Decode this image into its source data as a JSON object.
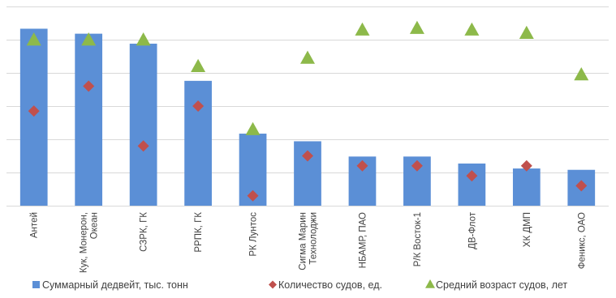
{
  "chart_data": {
    "type": "bar",
    "categories": [
      [
        "Антей"
      ],
      [
        "Кук, Монерон,",
        "Океан"
      ],
      [
        "СЗРК, ГК"
      ],
      [
        "РРПК, ГК"
      ],
      [
        "РК Лунтос"
      ],
      [
        "Сигма Марин",
        "Технолоджи"
      ],
      [
        "НБАМР, ПАО"
      ],
      [
        "Р/К Восток-1"
      ],
      [
        "ДВ-Флот"
      ],
      [
        "ХК ДМП"
      ],
      [
        "Феникс, ОАО"
      ]
    ],
    "y_range": [
      0,
      6
    ],
    "gridlines": [
      1,
      2,
      3,
      4,
      5,
      6
    ],
    "y_ticks_shown": false,
    "series": [
      {
        "name": "Суммарный дедвейт, тыс. тонн",
        "kind": "bar",
        "color": "#5b8fd6",
        "marker": "square",
        "values": [
          5.33,
          5.18,
          4.88,
          3.76,
          2.17,
          1.94,
          1.48,
          1.48,
          1.27,
          1.12,
          1.08
        ]
      },
      {
        "name": "Количество судов, ед.",
        "kind": "marker",
        "color": "#c0504d",
        "marker": "diamond",
        "values": [
          2.85,
          3.6,
          1.8,
          3.0,
          0.3,
          1.5,
          1.2,
          1.2,
          0.9,
          1.2,
          0.6
        ]
      },
      {
        "name": "Средний возраст судов, лет",
        "kind": "marker",
        "color": "#8db94a",
        "marker": "triangle",
        "values": [
          5.0,
          5.0,
          5.0,
          4.2,
          2.3,
          4.45,
          5.3,
          5.35,
          5.3,
          5.2,
          3.95
        ]
      }
    ],
    "grid": true,
    "legend_position": "bottom"
  }
}
